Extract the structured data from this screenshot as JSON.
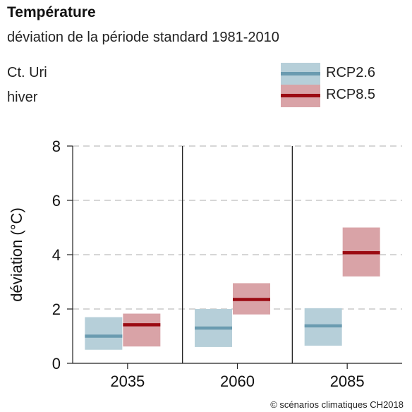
{
  "title": "Température",
  "subtitle": "déviation de la période standard 1981-2010",
  "location": "Ct. Uri",
  "season": "hiver",
  "credit": "© scénarios climatiques CH2018",
  "legend": [
    {
      "label": "RCP2.6",
      "fill": "#b6cfd9",
      "line": "#6a9bb0"
    },
    {
      "label": "RCP8.5",
      "fill": "#d9a3a7",
      "line": "#9b0a12"
    }
  ],
  "chart_data": {
    "type": "bar",
    "categories": [
      "2035",
      "2060",
      "2085"
    ],
    "ylabel": "déviation (°C)",
    "ylim": [
      0,
      8
    ],
    "yticks": [
      "0",
      "2",
      "4",
      "6",
      "8"
    ],
    "grid": true,
    "legend_position": "top-right",
    "series": [
      {
        "name": "RCP2.6",
        "ranges": [
          {
            "low": 0.5,
            "median": 1.0,
            "high": 1.7
          },
          {
            "low": 0.6,
            "median": 1.3,
            "high": 2.0
          },
          {
            "low": 0.65,
            "median": 1.38,
            "high": 2.03
          }
        ]
      },
      {
        "name": "RCP8.5",
        "ranges": [
          {
            "low": 0.62,
            "median": 1.42,
            "high": 1.83
          },
          {
            "low": 1.8,
            "median": 2.35,
            "high": 2.95
          },
          {
            "low": 3.2,
            "median": 4.07,
            "high": 5.0
          }
        ]
      }
    ]
  }
}
